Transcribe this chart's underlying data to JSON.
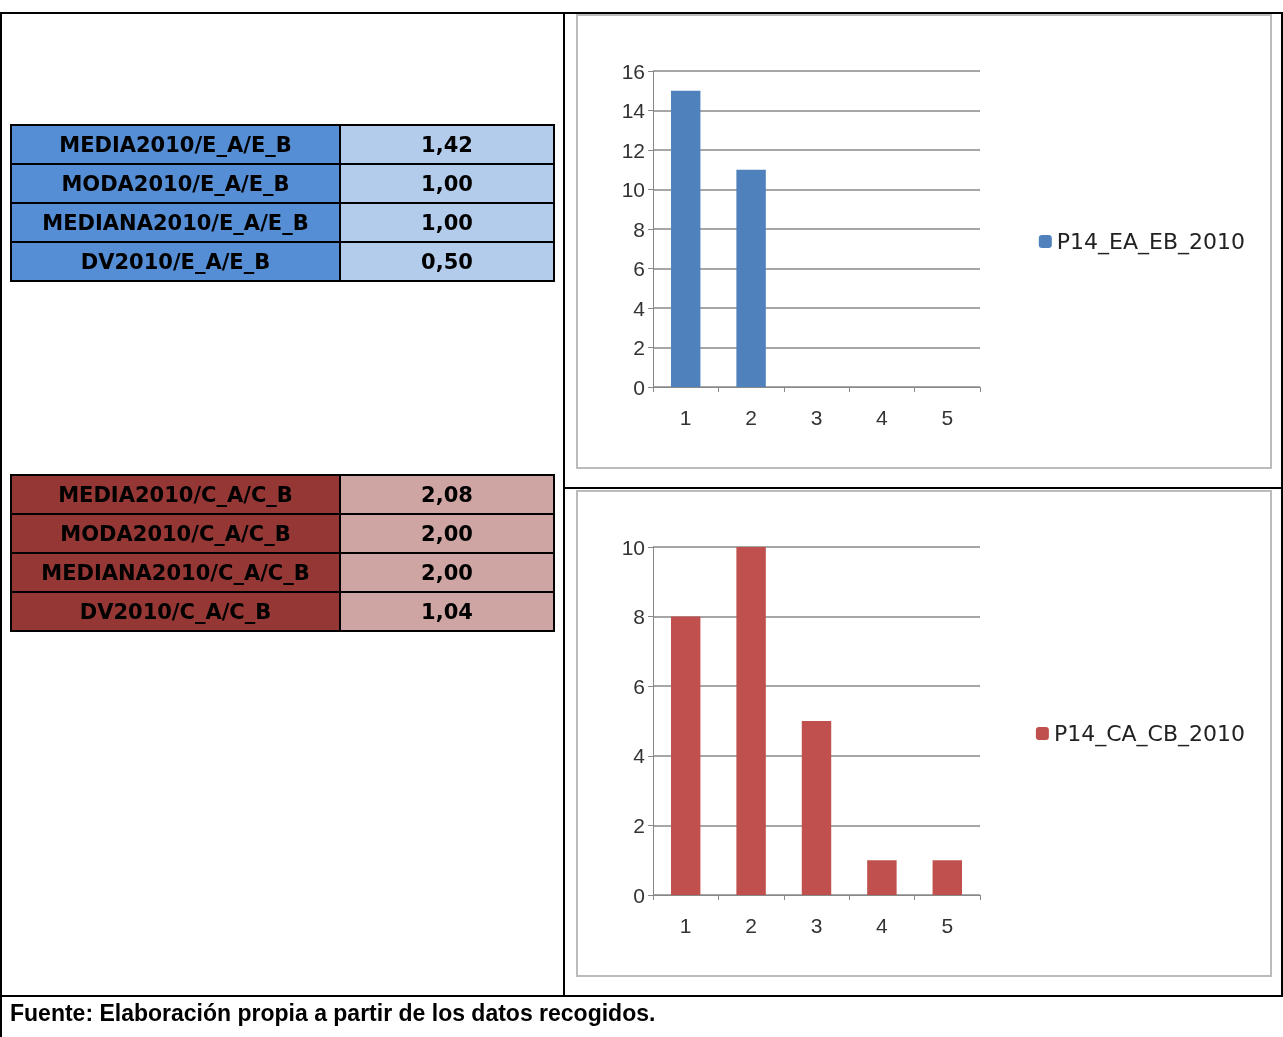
{
  "chart_data": [
    {
      "type": "other",
      "categories": [
        "MEDIA2010/E_A/E_B",
        "MODA2010/E_A/E_B",
        "MEDIANA2010/E_A/E_B",
        "DV2010/E_A/E_B"
      ],
      "value_labels": [
        "1,42",
        "1,00",
        "1,00",
        "0,50"
      ],
      "color": "#558ed5"
    },
    {
      "type": "bar",
      "categories": [
        "1",
        "2",
        "3",
        "4",
        "5"
      ],
      "series": [
        {
          "name": "P14_EA_EB_2010",
          "color": "#4f81bd",
          "values": [
            15,
            11,
            0,
            0,
            0
          ]
        }
      ],
      "ylim": [
        0,
        16
      ],
      "yticks": [
        0,
        2,
        4,
        6,
        8,
        10,
        12,
        14,
        16
      ],
      "grid": "y",
      "legend": "right"
    },
    {
      "type": "other",
      "categories": [
        "MEDIA2010/C_A/C_B",
        "MODA2010/C_A/C_B",
        "MEDIANA2010/C_A/C_B",
        "DV2010/C_A/C_B"
      ],
      "value_labels": [
        "2,08",
        "2,00",
        "2,00",
        "1,04"
      ],
      "color": "#953735"
    },
    {
      "type": "bar",
      "categories": [
        "1",
        "2",
        "3",
        "4",
        "5"
      ],
      "series": [
        {
          "name": "P14_CA_CB_2010",
          "color": "#c0504d",
          "values": [
            8,
            10,
            5,
            1,
            1
          ]
        }
      ],
      "ylim": [
        0,
        10
      ],
      "yticks": [
        0,
        2,
        4,
        6,
        8,
        10
      ],
      "grid": "y",
      "legend": "right",
      "annotations": [
        "Fuente: Elaboración propia a partir de los datos recogidos."
      ]
    }
  ]
}
